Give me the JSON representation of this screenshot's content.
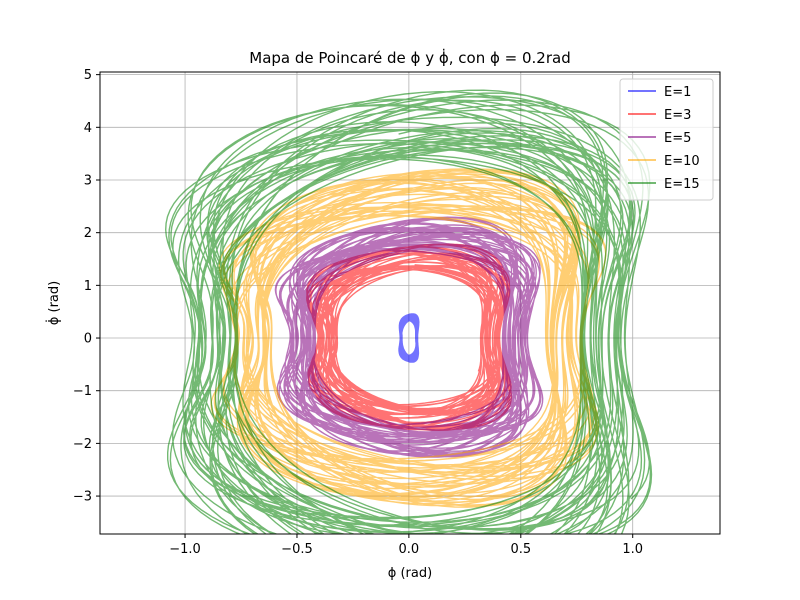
{
  "chart_data": {
    "type": "line",
    "title": "Mapa de Poincaré de ϕ y ϕ̇, con  ϕ = 0.2rad",
    "xlabel": "ϕ (rad)",
    "ylabel": "ϕ̇ (rad)",
    "xlim": [
      -1.38,
      1.39
    ],
    "ylim": [
      -3.72,
      5.05
    ],
    "xticks": [
      -1.0,
      -0.5,
      0.0,
      0.5,
      1.0
    ],
    "xtick_labels": [
      "−1.0",
      "−0.5",
      "0.0",
      "0.5",
      "1.0"
    ],
    "yticks": [
      -3,
      -2,
      -1,
      0,
      1,
      2,
      3,
      4,
      5
    ],
    "ytick_labels": [
      "−3",
      "−2",
      "−1",
      "0",
      "1",
      "2",
      "3",
      "4",
      "5"
    ],
    "grid": true,
    "legend_position": "upper right",
    "series": [
      {
        "name": "E=1",
        "color": "#0000ff",
        "alpha": 0.55,
        "amplitude_x": 0.05,
        "amplitude_y": 0.45
      },
      {
        "name": "E=3",
        "color": "#ff0000",
        "alpha": 0.55,
        "amplitude_x": 0.52,
        "amplitude_y": 1.75
      },
      {
        "name": "E=5",
        "color": "#800080",
        "alpha": 0.55,
        "amplitude_x": 0.68,
        "amplitude_y": 2.25
      },
      {
        "name": "E=10",
        "color": "#ffa500",
        "alpha": 0.55,
        "amplitude_x": 1.0,
        "amplitude_y": 3.15
      },
      {
        "name": "E=15",
        "color": "#008000",
        "alpha": 0.55,
        "amplitude_x": 1.24,
        "amplitude_y": 4.65
      }
    ]
  }
}
